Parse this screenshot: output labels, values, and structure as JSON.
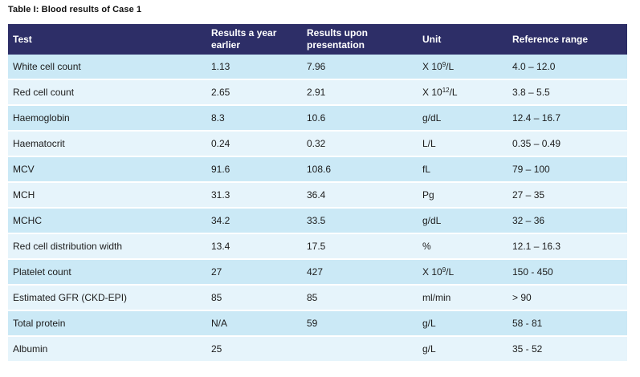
{
  "title": "Table I: Blood results of Case 1",
  "colors": {
    "header_bg": "#2d2e67",
    "header_text": "#ffffff",
    "row_stripe_dark": "#cbe9f6",
    "row_stripe_light": "#e6f4fb",
    "body_text": "#1c1c1c",
    "page_bg": "#ffffff"
  },
  "table": {
    "columns": [
      "Test",
      "Results a year earlier",
      "Results upon presentation",
      "Unit",
      "Reference range"
    ],
    "rows": [
      {
        "test": "White cell count",
        "year_earlier": "1.13",
        "presentation": "7.96",
        "unit": {
          "pre": "X 10",
          "sup": "9",
          "post": "/L"
        },
        "range": "4.0 – 12.0"
      },
      {
        "test": "Red cell count",
        "year_earlier": "2.65",
        "presentation": "2.91",
        "unit": {
          "pre": "X 10",
          "sup": "12",
          "post": "/L"
        },
        "range": "3.8 – 5.5"
      },
      {
        "test": "Haemoglobin",
        "year_earlier": "8.3",
        "presentation": "10.6",
        "unit": {
          "pre": "g/dL",
          "sup": "",
          "post": ""
        },
        "range": "12.4 – 16.7"
      },
      {
        "test": "Haematocrit",
        "year_earlier": "0.24",
        "presentation": "0.32",
        "unit": {
          "pre": "L/L",
          "sup": "",
          "post": ""
        },
        "range": "0.35 – 0.49"
      },
      {
        "test": "MCV",
        "year_earlier": "91.6",
        "presentation": "108.6",
        "unit": {
          "pre": "fL",
          "sup": "",
          "post": ""
        },
        "range": "79 – 100"
      },
      {
        "test": "MCH",
        "year_earlier": "31.3",
        "presentation": "36.4",
        "unit": {
          "pre": "Pg",
          "sup": "",
          "post": ""
        },
        "range": "27 – 35"
      },
      {
        "test": "MCHC",
        "year_earlier": "34.2",
        "presentation": "33.5",
        "unit": {
          "pre": "g/dL",
          "sup": "",
          "post": ""
        },
        "range": "32 – 36"
      },
      {
        "test": "Red cell distribution width",
        "year_earlier": "13.4",
        "presentation": "17.5",
        "unit": {
          "pre": "%",
          "sup": "",
          "post": ""
        },
        "range": "12.1 – 16.3"
      },
      {
        "test": "Platelet count",
        "year_earlier": "27",
        "presentation": "427",
        "unit": {
          "pre": "X 10",
          "sup": "9",
          "post": "/L"
        },
        "range": "150 - 450"
      },
      {
        "test": "Estimated GFR (CKD-EPI)",
        "year_earlier": "85",
        "presentation": "85",
        "unit": {
          "pre": "ml/min",
          "sup": "",
          "post": ""
        },
        "range": "> 90"
      },
      {
        "test": "Total protein",
        "year_earlier": "N/A",
        "presentation": "59",
        "unit": {
          "pre": "g/L",
          "sup": "",
          "post": ""
        },
        "range": "58 - 81"
      },
      {
        "test": "Albumin",
        "year_earlier": "25",
        "presentation": "",
        "unit": {
          "pre": "g/L",
          "sup": "",
          "post": ""
        },
        "range": "35 - 52"
      }
    ]
  },
  "chart_data": {
    "type": "table",
    "title": "Table I: Blood results of Case 1",
    "columns": [
      "Test",
      "Results a year earlier",
      "Results upon presentation",
      "Unit",
      "Reference range"
    ],
    "rows": [
      [
        "White cell count",
        "1.13",
        "7.96",
        "X 10⁹/L",
        "4.0 – 12.0"
      ],
      [
        "Red cell count",
        "2.65",
        "2.91",
        "X 10¹²/L",
        "3.8 – 5.5"
      ],
      [
        "Haemoglobin",
        "8.3",
        "10.6",
        "g/dL",
        "12.4 – 16.7"
      ],
      [
        "Haematocrit",
        "0.24",
        "0.32",
        "L/L",
        "0.35 – 0.49"
      ],
      [
        "MCV",
        "91.6",
        "108.6",
        "fL",
        "79 – 100"
      ],
      [
        "MCH",
        "31.3",
        "36.4",
        "Pg",
        "27 – 35"
      ],
      [
        "MCHC",
        "34.2",
        "33.5",
        "g/dL",
        "32 – 36"
      ],
      [
        "Red cell distribution width",
        "13.4",
        "17.5",
        "%",
        "12.1 – 16.3"
      ],
      [
        "Platelet count",
        "27",
        "427",
        "X 10⁹/L",
        "150 - 450"
      ],
      [
        "Estimated GFR (CKD-EPI)",
        "85",
        "85",
        "ml/min",
        "> 90"
      ],
      [
        "Total protein",
        "N/A",
        "59",
        "g/L",
        "58 - 81"
      ],
      [
        "Albumin",
        "25",
        "",
        "g/L",
        "35 - 52"
      ]
    ]
  }
}
